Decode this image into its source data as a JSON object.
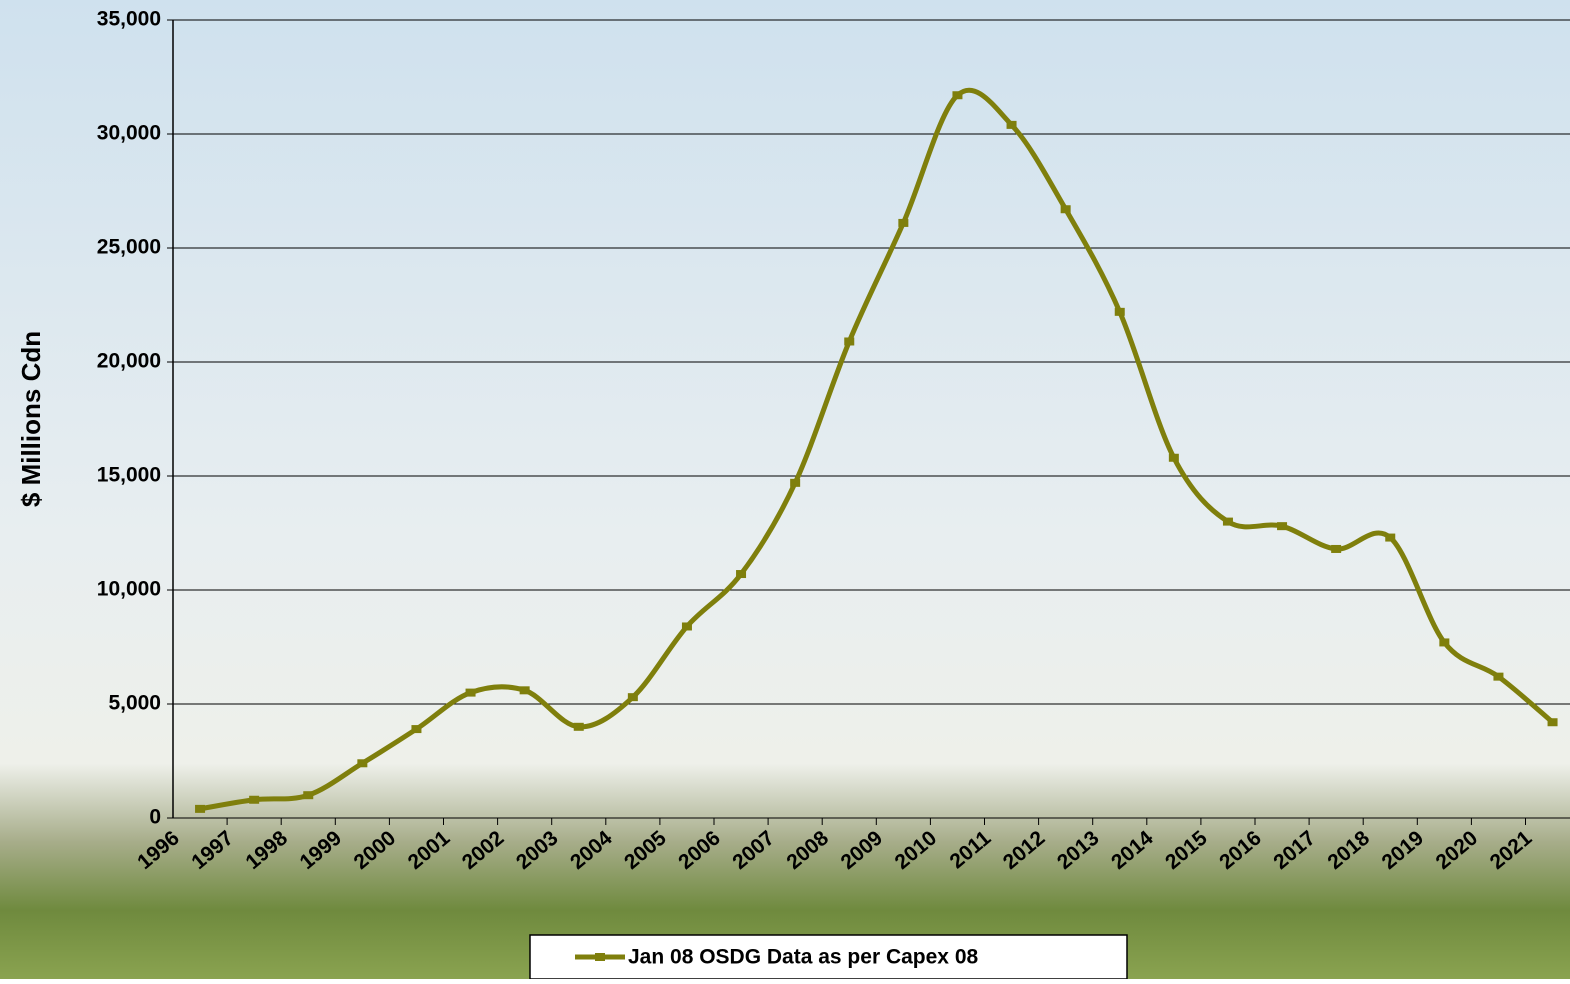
{
  "chart_data": {
    "type": "line",
    "y_label": "$ Millions Cdn",
    "categories": [
      "1996",
      "1997",
      "1998",
      "1999",
      "2000",
      "2001",
      "2002",
      "2003",
      "2004",
      "2005",
      "2006",
      "2007",
      "2008",
      "2009",
      "2010",
      "2011",
      "2012",
      "2013",
      "2014",
      "2015",
      "2016",
      "2017",
      "2018",
      "2019",
      "2020",
      "2021"
    ],
    "series": [
      {
        "name": "Jan 08 OSDG Data as per Capex 08",
        "color": "#7f7f0c",
        "values": [
          400,
          800,
          1000,
          2400,
          3900,
          5500,
          5600,
          4000,
          5300,
          8400,
          10700,
          14700,
          20900,
          26100,
          31700,
          30400,
          26700,
          22200,
          15800,
          13000,
          12800,
          11800,
          12300,
          7700,
          6200,
          4200
        ]
      }
    ],
    "ylim": [
      0,
      35000
    ],
    "yticks": [
      0,
      {
        "value": 5000,
        "label": "5,000"
      },
      {
        "value": 10000,
        "label": "10,000"
      },
      {
        "value": 15000,
        "label": "15,000"
      },
      {
        "value": 20000,
        "label": "20,000"
      },
      {
        "value": 25000,
        "label": "25,000"
      },
      {
        "value": 30000,
        "label": "30,000"
      },
      {
        "value": 35000,
        "label": "35,000"
      }
    ],
    "grid": true,
    "legend": "bottom"
  }
}
